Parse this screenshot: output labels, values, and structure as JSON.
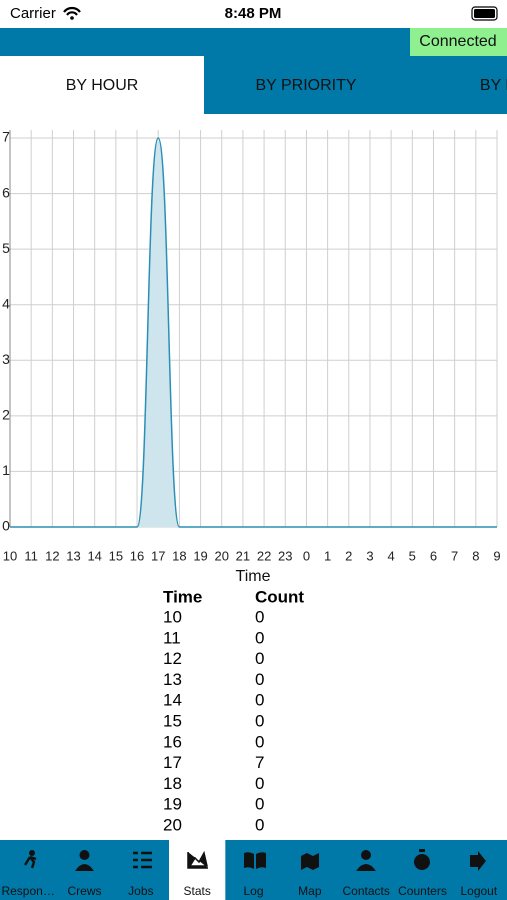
{
  "status_bar": {
    "carrier": "Carrier",
    "time": "8:48 PM"
  },
  "connection": "Connected",
  "tabs": [
    "BY HOUR",
    "BY PRIORITY",
    "BY DUR"
  ],
  "chart_data": {
    "type": "area",
    "categories": [
      "10",
      "11",
      "12",
      "13",
      "14",
      "15",
      "16",
      "17",
      "18",
      "19",
      "20",
      "21",
      "22",
      "23",
      "0",
      "1",
      "2",
      "3",
      "4",
      "5",
      "6",
      "7",
      "8",
      "9"
    ],
    "values": [
      0,
      0,
      0,
      0,
      0,
      0,
      0,
      7,
      0,
      0,
      0,
      0,
      0,
      0,
      0,
      0,
      0,
      0,
      0,
      0,
      0,
      0,
      0,
      0
    ],
    "xlabel": "Time",
    "ylim": [
      0,
      7
    ],
    "yticks": [
      0,
      1,
      2,
      3,
      4,
      5,
      6,
      7
    ],
    "grid": true,
    "color": "#2a8fb5",
    "fill": "#cfe5ee"
  },
  "table": {
    "header": [
      "Time",
      "Count"
    ],
    "rows": [
      [
        "10",
        "0"
      ],
      [
        "11",
        "0"
      ],
      [
        "12",
        "0"
      ],
      [
        "13",
        "0"
      ],
      [
        "14",
        "0"
      ],
      [
        "15",
        "0"
      ],
      [
        "16",
        "0"
      ],
      [
        "17",
        "7"
      ],
      [
        "18",
        "0"
      ],
      [
        "19",
        "0"
      ],
      [
        "20",
        "0"
      ]
    ]
  },
  "nav": [
    "Respon…",
    "Crews",
    "Jobs",
    "Stats",
    "Log",
    "Map",
    "Contacts",
    "Counters",
    "Logout"
  ],
  "nav_selected": 3
}
